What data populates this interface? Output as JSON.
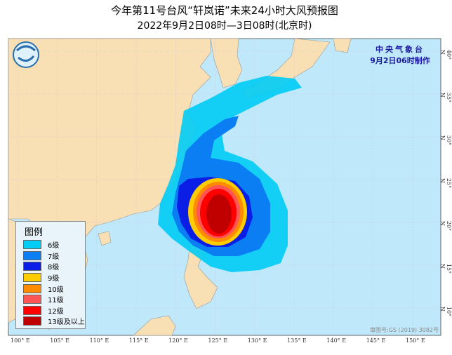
{
  "title": "今年第11号台风“轩岚诺”未来24小时大风预报图",
  "subtitle": "2022年9月2日08时—3日08时(北京时)",
  "agency": "中央气象台",
  "issued": "9月2日06时制作",
  "approval": "审图号:GS (2019) 3082号",
  "legend": {
    "title": "图例",
    "items": [
      {
        "label": "6级",
        "color": "#00ccf5"
      },
      {
        "label": "7级",
        "color": "#0a7ef2"
      },
      {
        "label": "8级",
        "color": "#0a1ee6"
      },
      {
        "label": "9级",
        "color": "#ffcc00"
      },
      {
        "label": "10级",
        "color": "#ff8c00"
      },
      {
        "label": "11级",
        "color": "#ff5555"
      },
      {
        "label": "12级",
        "color": "#ff0000"
      },
      {
        "label": "13级及以上",
        "color": "#c00000"
      }
    ]
  },
  "lon_labels": [
    "100° E",
    "105° E",
    "110° E",
    "115° E",
    "120° E",
    "125° E",
    "130° E",
    "135° E",
    "140° E",
    "145° E",
    "150° E"
  ],
  "lat_labels": [
    "40° N",
    "35° N",
    "30° N",
    "25° N",
    "20° N",
    "15° N",
    "10° N"
  ],
  "colors": {
    "sea": "#bfe9fb",
    "land": "#f9dfb4"
  }
}
